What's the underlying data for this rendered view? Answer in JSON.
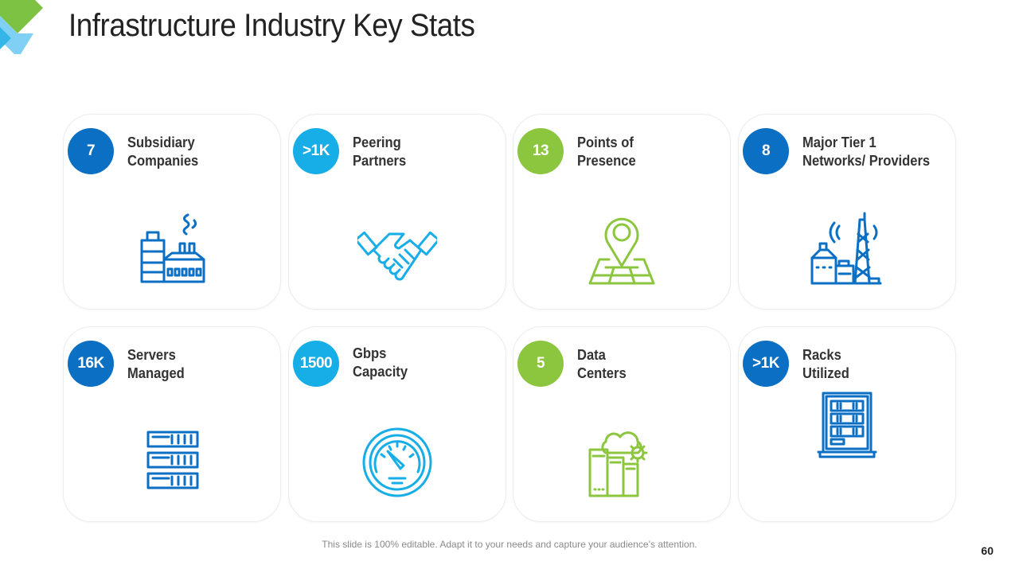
{
  "title": "Infrastructure Industry Key Stats",
  "colors": {
    "dark_blue": "#0b6fc4",
    "light_blue": "#17aee8",
    "green": "#8cc63f",
    "card_border": "#ececec"
  },
  "cards": [
    {
      "value": "7",
      "label_line1": "Subsidiary",
      "label_line2": "Companies",
      "badge_color": "#0b6fc4",
      "icon": "factory-icon"
    },
    {
      "value": ">1K",
      "label_line1": "Peering",
      "label_line2": "Partners",
      "badge_color": "#17aee8",
      "icon": "handshake-icon"
    },
    {
      "value": "13",
      "label_line1": "Points of",
      "label_line2": "Presence",
      "badge_color": "#8cc63f",
      "icon": "map-pin-icon"
    },
    {
      "value": "8",
      "label_line1": "Major Tier 1",
      "label_line2": "Networks/ Providers",
      "badge_color": "#0b6fc4",
      "icon": "tower-icon"
    },
    {
      "value": "16K",
      "label_line1": "Servers",
      "label_line2": "Managed",
      "badge_color": "#0b6fc4",
      "icon": "server-stack-icon"
    },
    {
      "value": "1500",
      "label_line1": "Gbps",
      "label_line2": "Capacity",
      "badge_color": "#17aee8",
      "icon": "speedometer-icon"
    },
    {
      "value": "5",
      "label_line1": "Data",
      "label_line2": "Centers",
      "badge_color": "#8cc63f",
      "icon": "data-center-icon"
    },
    {
      "value": ">1K",
      "label_line1": "Racks",
      "label_line2": "Utilized",
      "badge_color": "#0b6fc4",
      "icon": "rack-icon"
    }
  ],
  "footer_note": "This slide is 100% editable. Adapt it to your needs and capture your audience’s attention.",
  "page_number": "60"
}
